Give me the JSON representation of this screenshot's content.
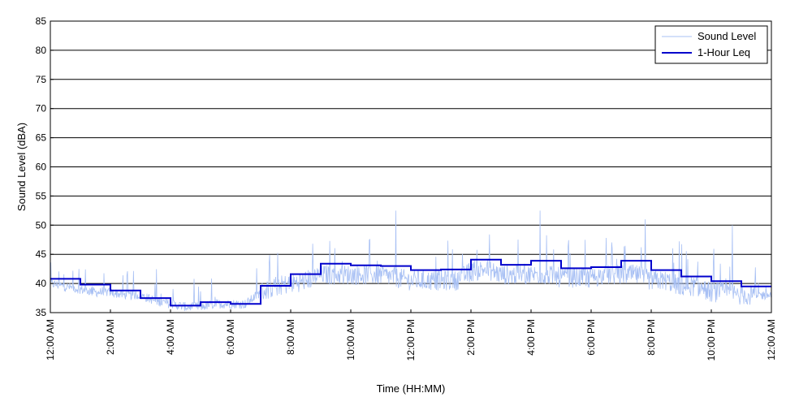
{
  "chart_data": {
    "type": "line",
    "xlabel": "Time (HH:MM)",
    "ylabel": "Sound Level (dBA)",
    "ylim": [
      35,
      85
    ],
    "xlim_hours": [
      0,
      24
    ],
    "y_ticks": [
      "35",
      "40",
      "45",
      "50",
      "55",
      "60",
      "65",
      "70",
      "75",
      "80",
      "85"
    ],
    "x_ticks": [
      {
        "hour": 0,
        "label": "12:00 AM"
      },
      {
        "hour": 2,
        "label": "2:00 AM"
      },
      {
        "hour": 4,
        "label": "4:00 AM"
      },
      {
        "hour": 6,
        "label": "6:00 AM"
      },
      {
        "hour": 8,
        "label": "8:00 AM"
      },
      {
        "hour": 10,
        "label": "10:00 AM"
      },
      {
        "hour": 12,
        "label": "12:00 PM"
      },
      {
        "hour": 14,
        "label": "2:00 PM"
      },
      {
        "hour": 16,
        "label": "4:00 PM"
      },
      {
        "hour": 18,
        "label": "6:00 PM"
      },
      {
        "hour": 20,
        "label": "8:00 PM"
      },
      {
        "hour": 22,
        "label": "10:00 PM"
      },
      {
        "hour": 24,
        "label": "12:00 AM"
      }
    ],
    "grid": "horizontal",
    "legend_position": "top-right",
    "series": [
      {
        "name": "Sound Level",
        "color": "#a8c0f4",
        "style": "thin-noisy-line",
        "x_hours": [
          0,
          0.5,
          1,
          1.5,
          2,
          2.5,
          3,
          3.5,
          4,
          4.5,
          5,
          5.5,
          6,
          6.5,
          7,
          7.5,
          8,
          8.5,
          9,
          9.5,
          10,
          10.5,
          11,
          11.5,
          12,
          12.5,
          13,
          13.5,
          14,
          14.5,
          15,
          15.5,
          16,
          16.5,
          17,
          17.5,
          18,
          18.5,
          19,
          19.5,
          20,
          20.5,
          21,
          21.5,
          22,
          22.5,
          23,
          23.5,
          24
        ],
        "values": [
          40,
          39.5,
          39,
          38.5,
          38.5,
          38,
          38,
          37,
          36.5,
          36,
          36,
          36.5,
          36.5,
          36.5,
          38.5,
          39.5,
          40,
          40.5,
          41.5,
          41.5,
          41.5,
          41.5,
          41.5,
          41,
          40.5,
          40.5,
          40.5,
          40.5,
          42,
          42.5,
          41.5,
          41.5,
          41.5,
          41.5,
          41,
          41,
          41,
          41.5,
          41.5,
          41.5,
          40.5,
          40.5,
          39.5,
          39.5,
          38.5,
          38.5,
          38,
          38,
          38
        ],
        "peaks": [
          {
            "hour": 11.5,
            "value": 52.5
          },
          {
            "hour": 16.3,
            "value": 52.5
          },
          {
            "hour": 19.8,
            "value": 51
          },
          {
            "hour": 22.7,
            "value": 50
          }
        ]
      },
      {
        "name": "1-Hour Leq",
        "color": "#0000cc",
        "style": "step",
        "hour_starts": [
          0,
          1,
          2,
          3,
          4,
          5,
          6,
          7,
          8,
          9,
          10,
          11,
          12,
          13,
          14,
          15,
          16,
          17,
          18,
          19,
          20,
          21,
          22,
          23
        ],
        "values": [
          40.8,
          39.8,
          38.8,
          37.5,
          36.2,
          36.8,
          36.5,
          39.6,
          41.6,
          43.4,
          43.1,
          43.0,
          42.3,
          42.4,
          44.1,
          43.2,
          43.9,
          42.6,
          42.8,
          43.9,
          42.3,
          41.2,
          40.4,
          39.5
        ]
      }
    ]
  }
}
